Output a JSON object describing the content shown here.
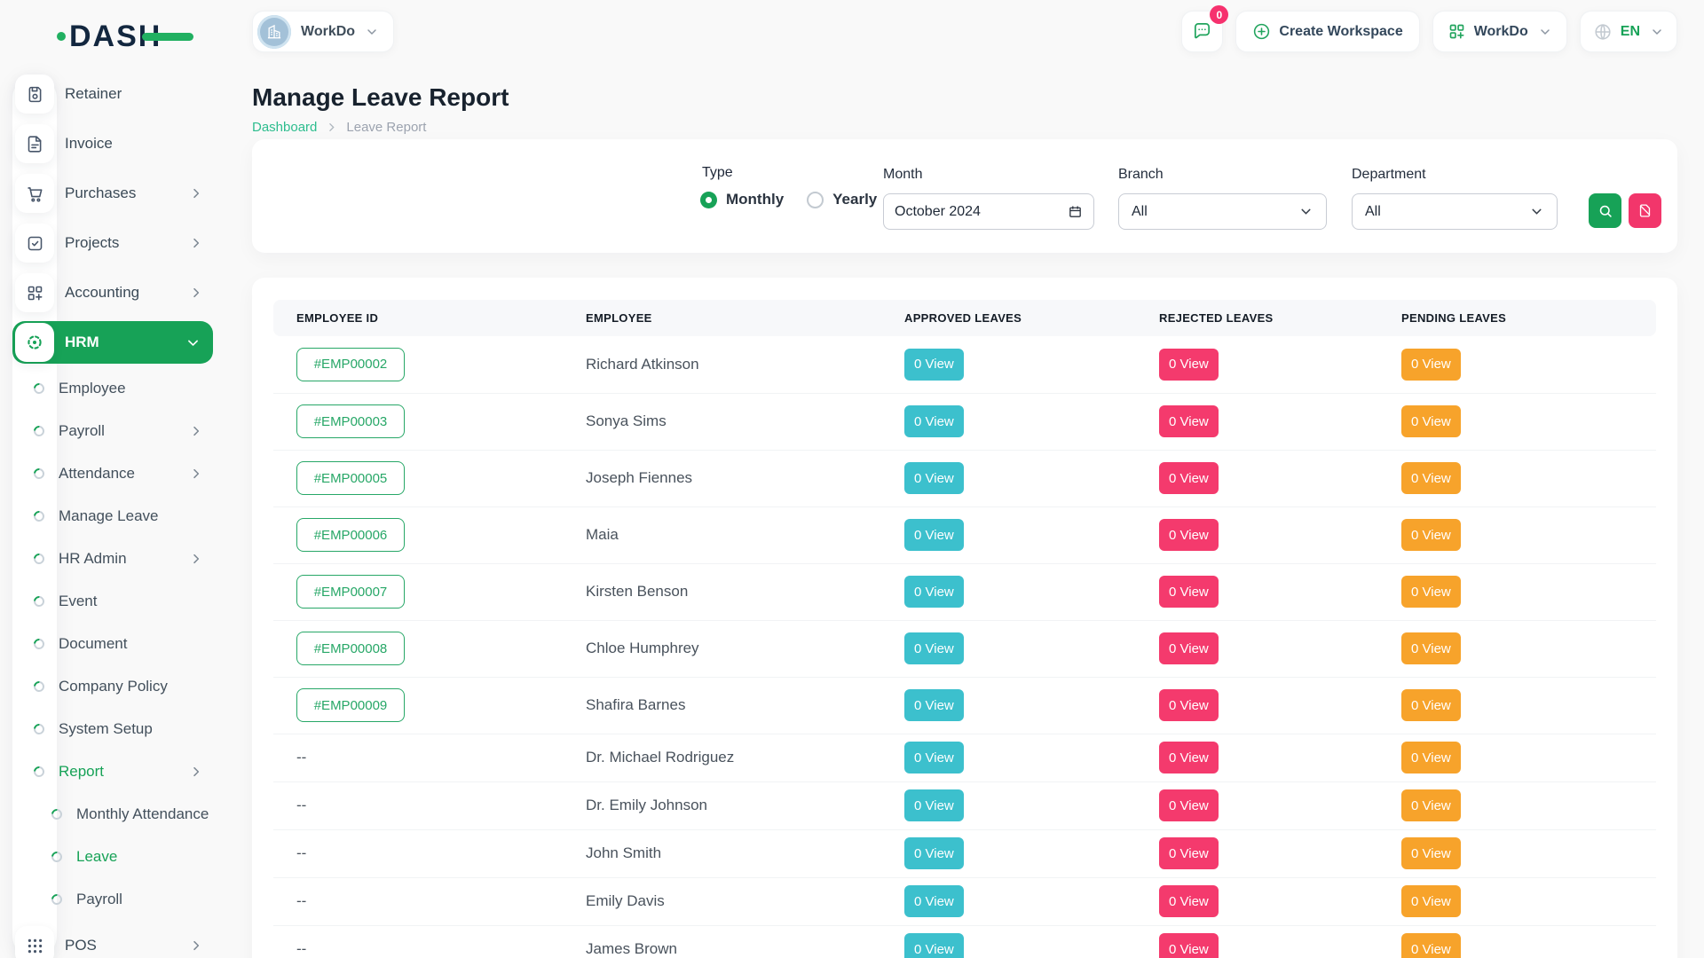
{
  "brand": {
    "logo_text": "DASH",
    "accent_green": "#17a257"
  },
  "topbar": {
    "workspace": {
      "label": "WorkDo"
    },
    "chat": {
      "badge": "0"
    },
    "create_workspace_label": "Create Workspace",
    "workdo_label": "WorkDo",
    "language": "EN"
  },
  "page": {
    "title": "Manage Leave Report",
    "breadcrumb": {
      "home": "Dashboard",
      "current": "Leave Report"
    }
  },
  "sidebar": {
    "items": [
      {
        "label": "Retainer",
        "icon": "retainer",
        "type": "top"
      },
      {
        "label": "Invoice",
        "icon": "invoice",
        "type": "top"
      },
      {
        "label": "Purchases",
        "icon": "purchases",
        "type": "top",
        "chevron": "right"
      },
      {
        "label": "Projects",
        "icon": "projects",
        "type": "top",
        "chevron": "right"
      },
      {
        "label": "Accounting",
        "icon": "accounting",
        "type": "top",
        "chevron": "right"
      },
      {
        "label": "HRM",
        "icon": "hrm",
        "type": "top",
        "chevron": "down",
        "active": true
      },
      {
        "label": "Employee",
        "type": "sub"
      },
      {
        "label": "Payroll",
        "type": "sub",
        "chevron": "right"
      },
      {
        "label": "Attendance",
        "type": "sub",
        "chevron": "right"
      },
      {
        "label": "Manage Leave",
        "type": "sub"
      },
      {
        "label": "HR Admin",
        "type": "sub",
        "chevron": "right"
      },
      {
        "label": "Event",
        "type": "sub"
      },
      {
        "label": "Document",
        "type": "sub"
      },
      {
        "label": "Company Policy",
        "type": "sub"
      },
      {
        "label": "System Setup",
        "type": "sub"
      },
      {
        "label": "Report",
        "type": "sub",
        "chevron": "right",
        "active": true
      },
      {
        "label": "Monthly Attendance",
        "type": "subsub"
      },
      {
        "label": "Leave",
        "type": "subsub",
        "active": true
      },
      {
        "label": "Payroll",
        "type": "subsub"
      },
      {
        "label": "POS",
        "icon": "pos",
        "type": "top",
        "chevron": "right"
      }
    ]
  },
  "filters": {
    "type_label": "Type",
    "type_options": [
      {
        "label": "Monthly",
        "selected": true
      },
      {
        "label": "Yearly",
        "selected": false
      }
    ],
    "month_label": "Month",
    "month_value": "October 2024",
    "branch_label": "Branch",
    "branch_value": "All",
    "department_label": "Department",
    "department_value": "All"
  },
  "table": {
    "columns": [
      "EMPLOYEE ID",
      "EMPLOYEE",
      "APPROVED LEAVES",
      "REJECTED LEAVES",
      "PENDING LEAVES"
    ],
    "rows": [
      {
        "id": "#EMP00002",
        "name": "Richard Atkinson",
        "approved": "0 View",
        "rejected": "0 View",
        "pending": "0 View"
      },
      {
        "id": "#EMP00003",
        "name": "Sonya Sims",
        "approved": "0 View",
        "rejected": "0 View",
        "pending": "0 View"
      },
      {
        "id": "#EMP00005",
        "name": "Joseph Fiennes",
        "approved": "0 View",
        "rejected": "0 View",
        "pending": "0 View"
      },
      {
        "id": "#EMP00006",
        "name": "Maia",
        "approved": "0 View",
        "rejected": "0 View",
        "pending": "0 View"
      },
      {
        "id": "#EMP00007",
        "name": "Kirsten Benson",
        "approved": "0 View",
        "rejected": "0 View",
        "pending": "0 View"
      },
      {
        "id": "#EMP00008",
        "name": "Chloe Humphrey",
        "approved": "0 View",
        "rejected": "0 View",
        "pending": "0 View"
      },
      {
        "id": "#EMP00009",
        "name": "Shafira Barnes",
        "approved": "0 View",
        "rejected": "0 View",
        "pending": "0 View"
      },
      {
        "id": "--",
        "name": "Dr. Michael Rodriguez",
        "approved": "0 View",
        "rejected": "0 View",
        "pending": "0 View"
      },
      {
        "id": "--",
        "name": "Dr. Emily Johnson",
        "approved": "0 View",
        "rejected": "0 View",
        "pending": "0 View"
      },
      {
        "id": "--",
        "name": "John Smith",
        "approved": "0 View",
        "rejected": "0 View",
        "pending": "0 View"
      },
      {
        "id": "--",
        "name": "Emily Davis",
        "approved": "0 View",
        "rejected": "0 View",
        "pending": "0 View"
      },
      {
        "id": "--",
        "name": "James Brown",
        "approved": "0 View",
        "rejected": "0 View",
        "pending": "0 View"
      }
    ]
  },
  "colors": {
    "primary_green": "#17a257",
    "breadcrumb_link_green": "#2dbd8e",
    "approved_badge_teal": "#3cc0cd",
    "rejected_badge_pink": "#f43a6d",
    "pending_badge_orange": "#f7a32b",
    "employee_chip_green": "#27a767",
    "reset_button_pink": "#f2366b",
    "notification_badge_pink": "#f6316e"
  }
}
